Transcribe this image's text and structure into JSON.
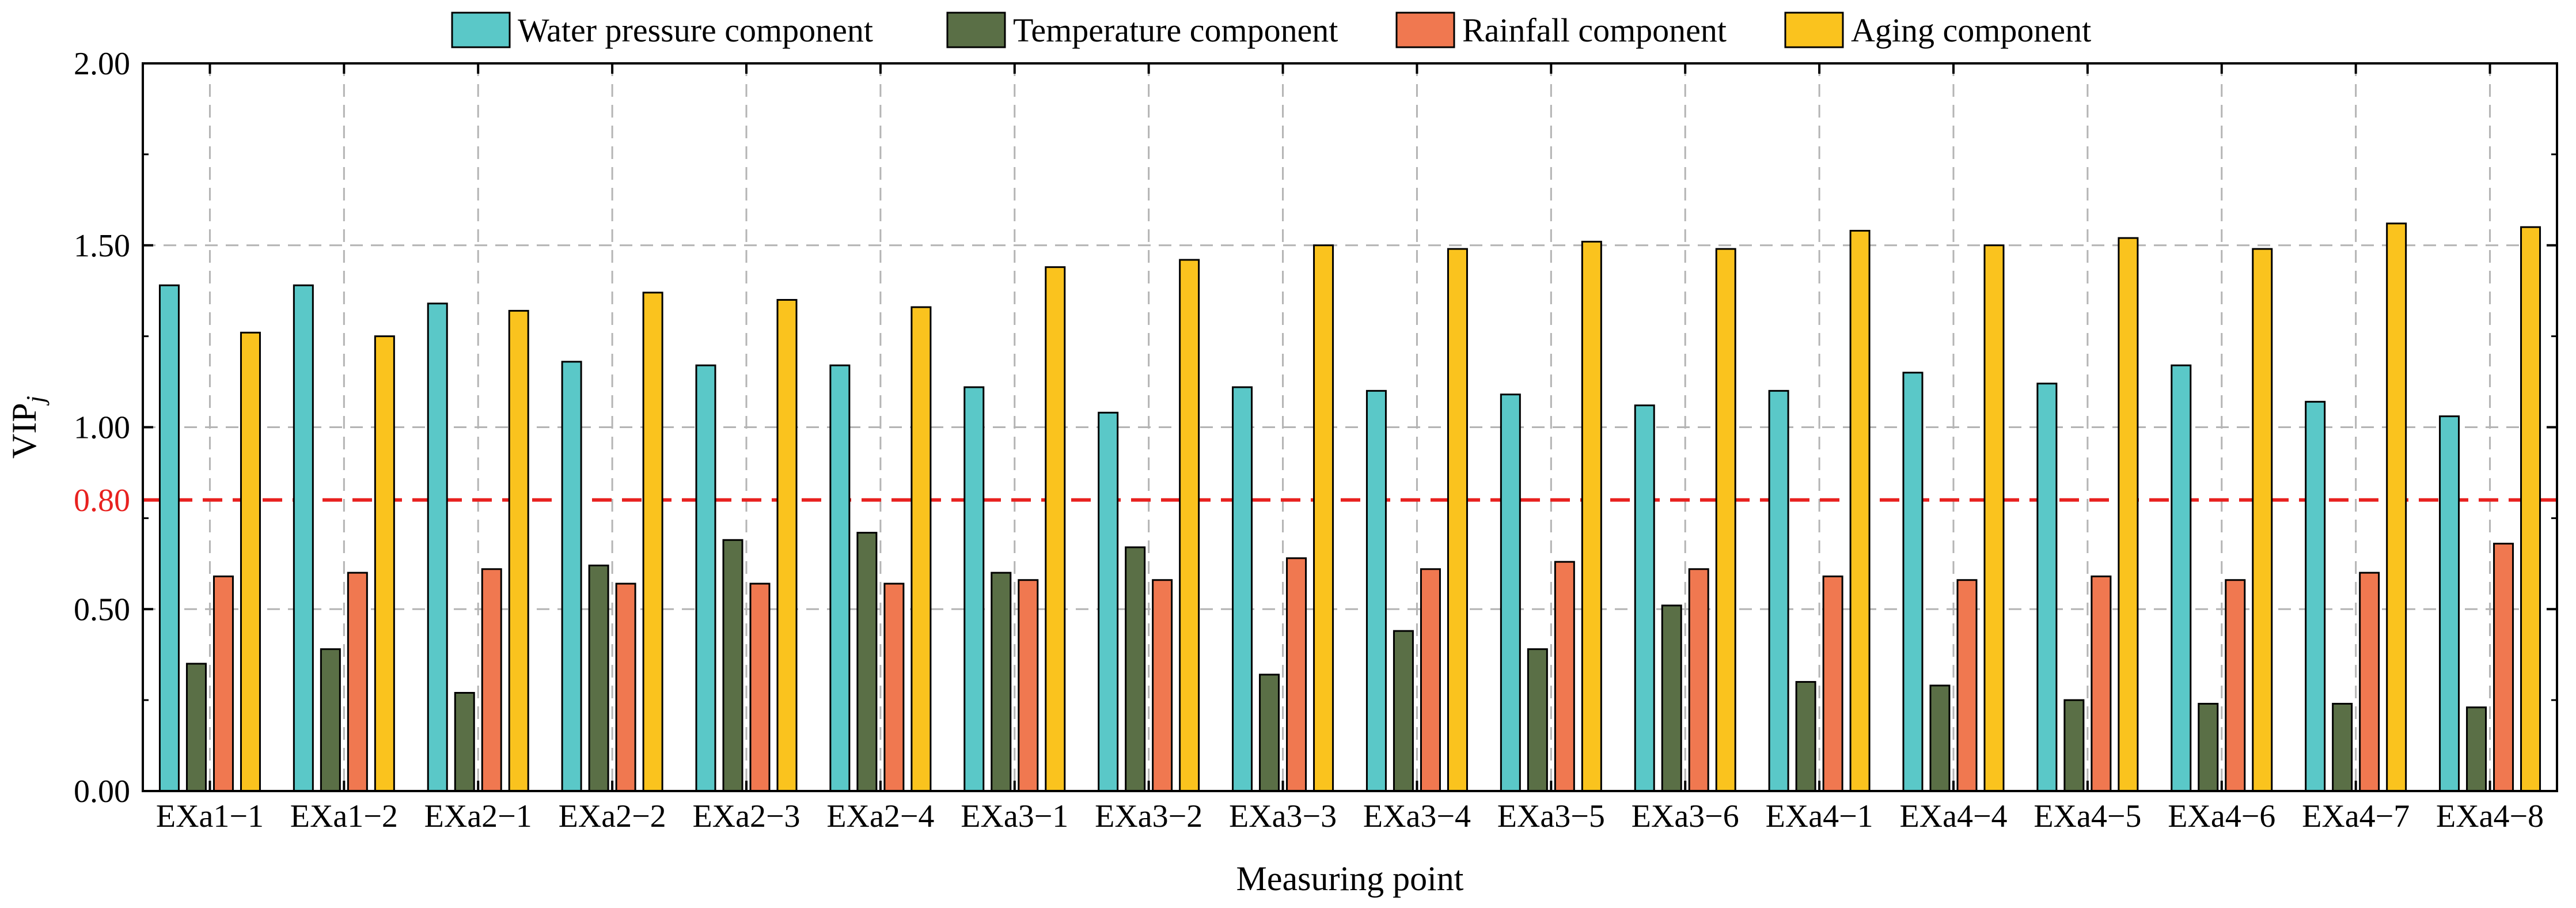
{
  "chart_data": {
    "type": "bar",
    "xlabel": "Measuring point",
    "ylabel": "VIP",
    "ylabel_subscript": "j",
    "ylim": [
      0,
      2.0
    ],
    "yticks": [
      "0.00",
      "0.50",
      "1.00",
      "1.50",
      "2.00"
    ],
    "grid": true,
    "legend_position": "top",
    "reference_line": {
      "value": 0.8,
      "label": "0.80",
      "color": "#e8211f",
      "style": "dashed"
    },
    "categories": [
      "EXa1−1",
      "EXa1−2",
      "EXa2−1",
      "EXa2−2",
      "EXa2−3",
      "EXa2−4",
      "EXa3−1",
      "EXa3−2",
      "EXa3−3",
      "EXa3−4",
      "EXa3−5",
      "EXa3−6",
      "EXa4−1",
      "EXa4−4",
      "EXa4−5",
      "EXa4−6",
      "EXa4−7",
      "EXa4−8"
    ],
    "series": [
      {
        "name": "Water pressure component",
        "color": "#5ac8c8",
        "values": [
          1.39,
          1.39,
          1.34,
          1.18,
          1.17,
          1.17,
          1.11,
          1.04,
          1.11,
          1.1,
          1.09,
          1.06,
          1.1,
          1.15,
          1.12,
          1.17,
          1.07,
          1.03
        ]
      },
      {
        "name": "Temperature component",
        "color": "#5a6f46",
        "values": [
          0.35,
          0.39,
          0.27,
          0.62,
          0.69,
          0.71,
          0.6,
          0.67,
          0.32,
          0.44,
          0.39,
          0.51,
          0.3,
          0.29,
          0.25,
          0.24,
          0.24,
          0.23
        ]
      },
      {
        "name": "Rainfall component",
        "color": "#f07850",
        "values": [
          0.59,
          0.6,
          0.61,
          0.57,
          0.57,
          0.57,
          0.58,
          0.58,
          0.64,
          0.61,
          0.63,
          0.61,
          0.59,
          0.58,
          0.59,
          0.58,
          0.6,
          0.68
        ]
      },
      {
        "name": "Aging component",
        "color": "#fac31e",
        "values": [
          1.26,
          1.25,
          1.32,
          1.37,
          1.35,
          1.33,
          1.44,
          1.46,
          1.5,
          1.49,
          1.51,
          1.49,
          1.54,
          1.5,
          1.52,
          1.49,
          1.56,
          1.55
        ]
      }
    ]
  }
}
